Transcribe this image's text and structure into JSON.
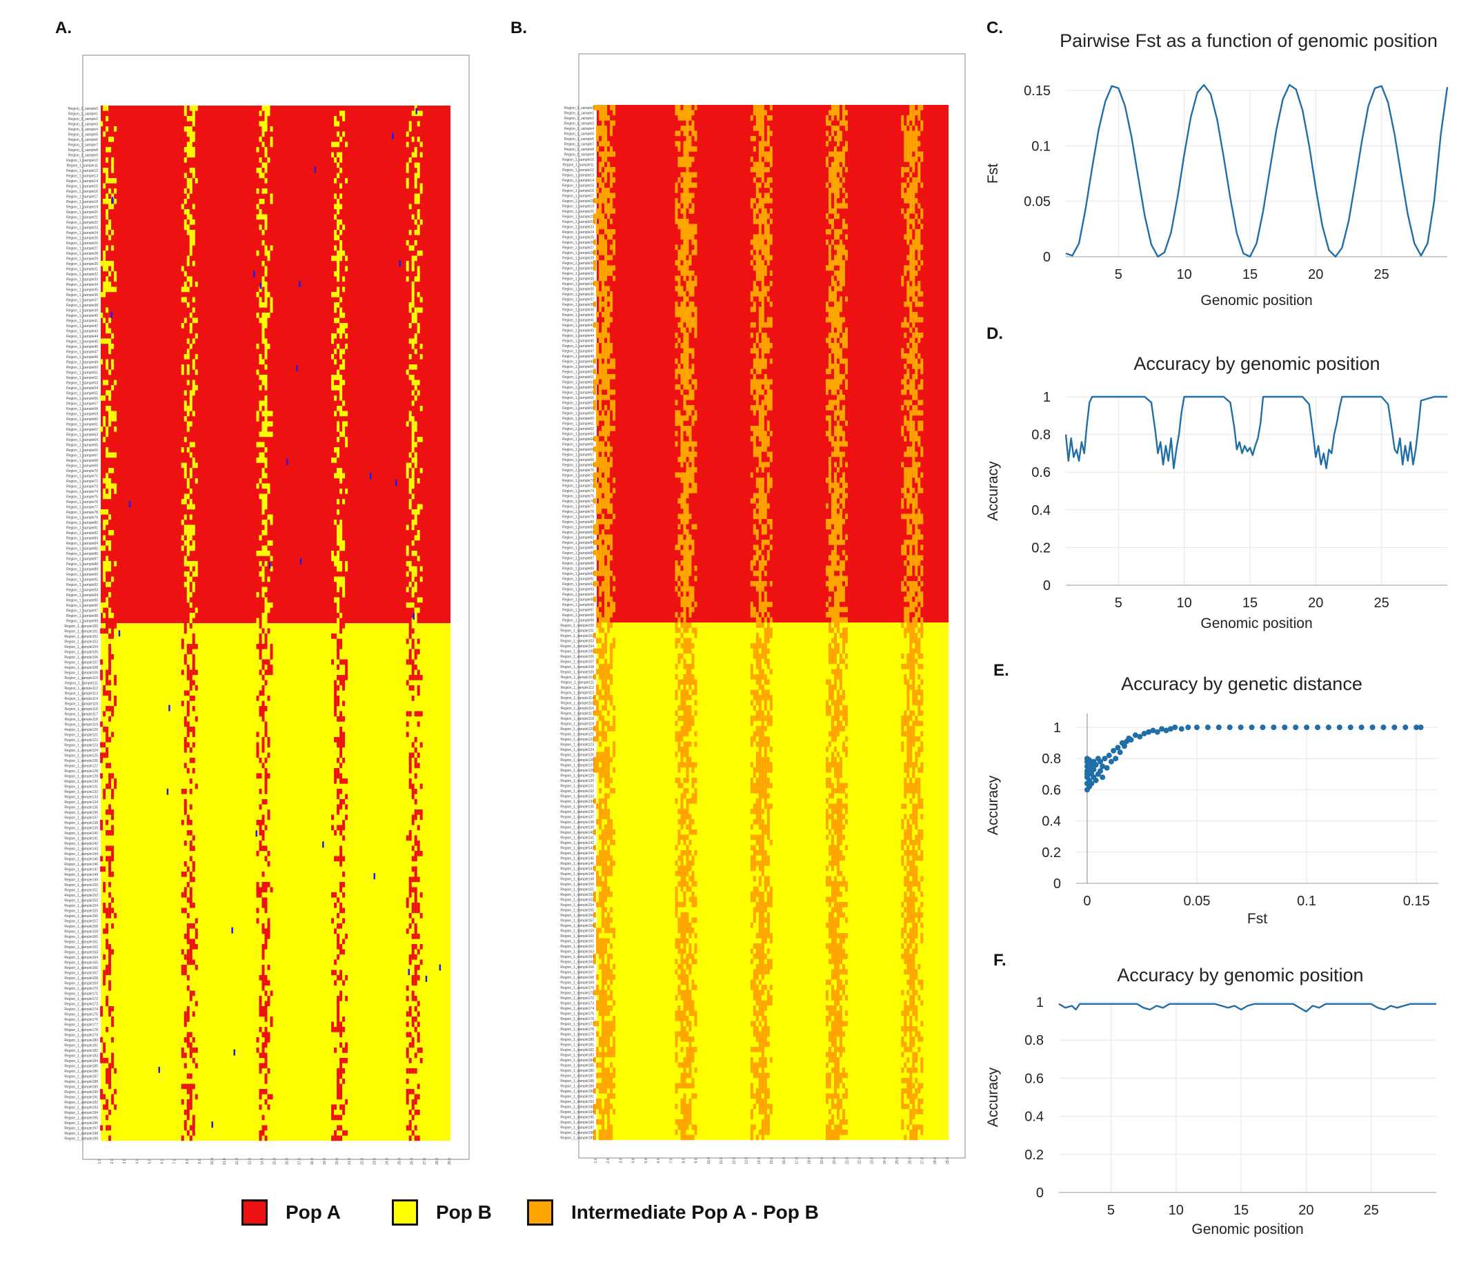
{
  "panels": {
    "a": "A.",
    "b": "B.",
    "c": "C.",
    "d": "D.",
    "e": "E.",
    "f": "F."
  },
  "legend": {
    "pop_a": "Pop A",
    "pop_b": "Pop B",
    "intermediate": "Intermediate Pop A - Pop B"
  },
  "colors": {
    "pop_a": "#ee1111",
    "pop_b": "#ffff00",
    "intermediate": "#ffa500",
    "line": "#1f6ea8",
    "grid": "#e6e6e6",
    "rare": "#1a1aff"
  },
  "chart_data": [
    {
      "id": "A",
      "type": "heatmap",
      "title": "",
      "rows": 200,
      "row_label_prefix": "Region_1_sample",
      "groups": [
        {
          "name": "Pop A",
          "rows": [
            0,
            99
          ],
          "color": "#ee1111"
        },
        {
          "name": "Pop B",
          "rows": [
            100,
            199
          ],
          "color": "#ffff00"
        }
      ],
      "admixed_bands_x": [
        1.5,
        8,
        14,
        20,
        26
      ],
      "other_color": "#ffff00",
      "x_range": [
        1,
        29
      ]
    },
    {
      "id": "B",
      "type": "heatmap",
      "title": "",
      "rows": 200,
      "row_label_prefix": "Region_1_sample",
      "groups": [
        {
          "name": "Pop A",
          "rows": [
            0,
            99
          ],
          "color": "#ee1111"
        },
        {
          "name": "Pop B",
          "rows": [
            100,
            199
          ],
          "color": "#ffff00"
        }
      ],
      "admixed_bands_x": [
        1.5,
        8,
        14,
        20,
        26
      ],
      "other_color": "#ffa500",
      "x_range": [
        1,
        29
      ]
    },
    {
      "id": "C",
      "type": "line",
      "title": "Pairwise Fst as a function of genomic position",
      "xlabel": "Genomic position",
      "ylabel": "Fst",
      "xlim": [
        1,
        30
      ],
      "ylim": [
        0,
        0.15
      ],
      "xticks": [
        5,
        10,
        15,
        20,
        25
      ],
      "yticks": [
        0,
        0.05,
        0.1,
        0.15
      ],
      "ytick_labels": [
        "0",
        "0.05",
        "0.1",
        "0.15"
      ],
      "series": [
        {
          "x": [
            1,
            1.5,
            2,
            2.5,
            3,
            3.5,
            4,
            4.5,
            5,
            5.5,
            6,
            6.5,
            7,
            7.5,
            8,
            8.5,
            9,
            9.5,
            10,
            10.5,
            11,
            11.5,
            12,
            12.5,
            13,
            13.5,
            14,
            14.5,
            15,
            15.5,
            16,
            16.5,
            17,
            17.5,
            18,
            18.5,
            19,
            19.5,
            20,
            20.5,
            21,
            21.5,
            22,
            22.5,
            23,
            23.5,
            24,
            24.5,
            25,
            25.5,
            26,
            26.5,
            27,
            27.5,
            28,
            28.5,
            29,
            29.5,
            30
          ],
          "y": [
            0.003,
            0.001,
            0.012,
            0.043,
            0.08,
            0.115,
            0.14,
            0.154,
            0.152,
            0.136,
            0.108,
            0.072,
            0.037,
            0.011,
            0,
            0.004,
            0.022,
            0.054,
            0.092,
            0.126,
            0.148,
            0.155,
            0.147,
            0.124,
            0.09,
            0.053,
            0.021,
            0.003,
            0,
            0.012,
            0.041,
            0.078,
            0.114,
            0.142,
            0.155,
            0.151,
            0.132,
            0.1,
            0.062,
            0.028,
            0.006,
            0,
            0.008,
            0.032,
            0.067,
            0.104,
            0.136,
            0.152,
            0.154,
            0.139,
            0.11,
            0.073,
            0.038,
            0.012,
            0.001,
            0.012,
            0.05,
            0.11,
            0.153
          ]
        }
      ]
    },
    {
      "id": "D",
      "type": "line",
      "title": "Accuracy by genomic position",
      "xlabel": "Genomic position",
      "ylabel": "Accuracy",
      "xlim": [
        1,
        30
      ],
      "ylim": [
        0,
        1
      ],
      "xticks": [
        5,
        10,
        15,
        20,
        25
      ],
      "yticks": [
        0,
        0.2,
        0.4,
        0.6,
        0.8,
        1
      ],
      "ytick_labels": [
        "0",
        "0.2",
        "0.4",
        "0.6",
        "0.8",
        "1"
      ],
      "series": [
        {
          "x": [
            1,
            1.2,
            1.4,
            1.6,
            1.8,
            2,
            2.2,
            2.4,
            2.6,
            2.8,
            3,
            4,
            5,
            6,
            7,
            7.5,
            7.8,
            8,
            8.2,
            8.4,
            8.6,
            8.8,
            9,
            9.2,
            9.4,
            9.6,
            9.8,
            10,
            11,
            12,
            13,
            13.5,
            13.8,
            14,
            14.2,
            14.4,
            14.6,
            14.8,
            15,
            15.2,
            15.4,
            15.6,
            15.8,
            16,
            17,
            18,
            19,
            19.5,
            19.8,
            20,
            20.2,
            20.4,
            20.6,
            20.8,
            21,
            21.2,
            21.4,
            21.6,
            21.8,
            22,
            23,
            24,
            25,
            25.5,
            25.8,
            26,
            26.2,
            26.4,
            26.6,
            26.8,
            27,
            27.2,
            27.4,
            27.6,
            27.8,
            28,
            29,
            30
          ],
          "y": [
            0.8,
            0.66,
            0.78,
            0.68,
            0.72,
            0.66,
            0.76,
            0.7,
            0.85,
            0.97,
            1,
            1,
            1,
            1,
            1,
            0.97,
            0.82,
            0.7,
            0.76,
            0.64,
            0.74,
            0.66,
            0.78,
            0.62,
            0.72,
            0.8,
            0.92,
            1,
            1,
            1,
            1,
            0.97,
            0.84,
            0.72,
            0.76,
            0.7,
            0.74,
            0.71,
            0.73,
            0.69,
            0.74,
            0.78,
            0.86,
            1,
            1,
            1,
            1,
            0.96,
            0.8,
            0.68,
            0.74,
            0.64,
            0.7,
            0.62,
            0.72,
            0.7,
            0.8,
            0.86,
            0.94,
            1,
            1,
            1,
            1,
            0.96,
            0.82,
            0.72,
            0.7,
            0.78,
            0.64,
            0.74,
            0.66,
            0.76,
            0.64,
            0.72,
            0.84,
            0.98,
            1,
            1
          ]
        }
      ]
    },
    {
      "id": "E",
      "type": "scatter",
      "title": "Accuracy by genetic distance",
      "xlabel": "Fst",
      "ylabel": "Accuracy",
      "xlim": [
        -0.005,
        0.16
      ],
      "ylim": [
        0,
        1
      ],
      "xticks": [
        0,
        0.05,
        0.1,
        0.15
      ],
      "xtick_labels": [
        "0",
        "0.05",
        "0.1",
        "0.15"
      ],
      "yticks": [
        0,
        0.2,
        0.4,
        0.6,
        0.8,
        1
      ],
      "ytick_labels": [
        "0",
        "0.2",
        "0.4",
        "0.6",
        "0.8",
        "1"
      ],
      "series": [
        {
          "x": [
            0,
            0,
            0,
            0,
            0,
            0,
            0,
            0,
            0.001,
            0.001,
            0.001,
            0.001,
            0.002,
            0.002,
            0.002,
            0.002,
            0.003,
            0.003,
            0.003,
            0.004,
            0.004,
            0.005,
            0.005,
            0.006,
            0.006,
            0.007,
            0.007,
            0.008,
            0.009,
            0.01,
            0.011,
            0.012,
            0.013,
            0.014,
            0.015,
            0.016,
            0.017,
            0.018,
            0.019,
            0.02,
            0.022,
            0.024,
            0.026,
            0.028,
            0.03,
            0.032,
            0.034,
            0.036,
            0.038,
            0.04,
            0.043,
            0.046,
            0.05,
            0.055,
            0.06,
            0.065,
            0.07,
            0.075,
            0.08,
            0.085,
            0.09,
            0.095,
            0.1,
            0.105,
            0.11,
            0.115,
            0.12,
            0.125,
            0.13,
            0.135,
            0.14,
            0.145,
            0.15,
            0.152
          ],
          "y": [
            0.6,
            0.64,
            0.68,
            0.72,
            0.75,
            0.78,
            0.8,
            0.7,
            0.62,
            0.74,
            0.66,
            0.79,
            0.7,
            0.76,
            0.64,
            0.72,
            0.78,
            0.68,
            0.73,
            0.66,
            0.76,
            0.7,
            0.8,
            0.72,
            0.78,
            0.68,
            0.75,
            0.8,
            0.74,
            0.82,
            0.78,
            0.85,
            0.8,
            0.87,
            0.84,
            0.9,
            0.88,
            0.91,
            0.93,
            0.92,
            0.95,
            0.94,
            0.96,
            0.97,
            0.98,
            0.97,
            0.99,
            0.98,
            0.99,
            1,
            0.99,
            1,
            1,
            1,
            1,
            1,
            1,
            1,
            1,
            1,
            1,
            1,
            1,
            1,
            1,
            1,
            1,
            1,
            1,
            1,
            1,
            1,
            1,
            1
          ]
        }
      ]
    },
    {
      "id": "F",
      "type": "line",
      "title": "Accuracy by genomic position",
      "xlabel": "Genomic position",
      "ylabel": "Accuracy",
      "xlim": [
        1,
        30
      ],
      "ylim": [
        0,
        1
      ],
      "xticks": [
        5,
        10,
        15,
        20,
        25
      ],
      "yticks": [
        0,
        0.2,
        0.4,
        0.6,
        0.8,
        1
      ],
      "ytick_labels": [
        "0",
        "0.2",
        "0.4",
        "0.6",
        "0.8",
        "1"
      ],
      "series": [
        {
          "x": [
            1,
            1.5,
            2,
            2.3,
            2.6,
            3,
            4,
            5,
            6,
            7,
            7.5,
            8,
            8.5,
            9,
            9.5,
            10,
            11,
            12,
            13,
            13.5,
            14,
            14.5,
            15,
            15.5,
            16,
            17,
            18,
            19,
            19.5,
            20,
            20.5,
            21,
            21.5,
            22,
            23,
            24,
            25,
            25.5,
            26,
            26.5,
            27,
            27.5,
            28,
            29,
            30
          ],
          "y": [
            0.99,
            0.97,
            0.98,
            0.96,
            0.99,
            0.99,
            0.99,
            0.99,
            0.99,
            0.99,
            0.97,
            0.96,
            0.98,
            0.97,
            0.99,
            0.99,
            0.99,
            0.99,
            0.99,
            0.98,
            0.97,
            0.98,
            0.96,
            0.98,
            0.99,
            0.99,
            0.99,
            0.99,
            0.97,
            0.95,
            0.98,
            0.97,
            0.99,
            0.99,
            0.99,
            0.99,
            0.99,
            0.97,
            0.96,
            0.98,
            0.97,
            0.98,
            0.99,
            0.99,
            0.99
          ]
        }
      ]
    }
  ]
}
